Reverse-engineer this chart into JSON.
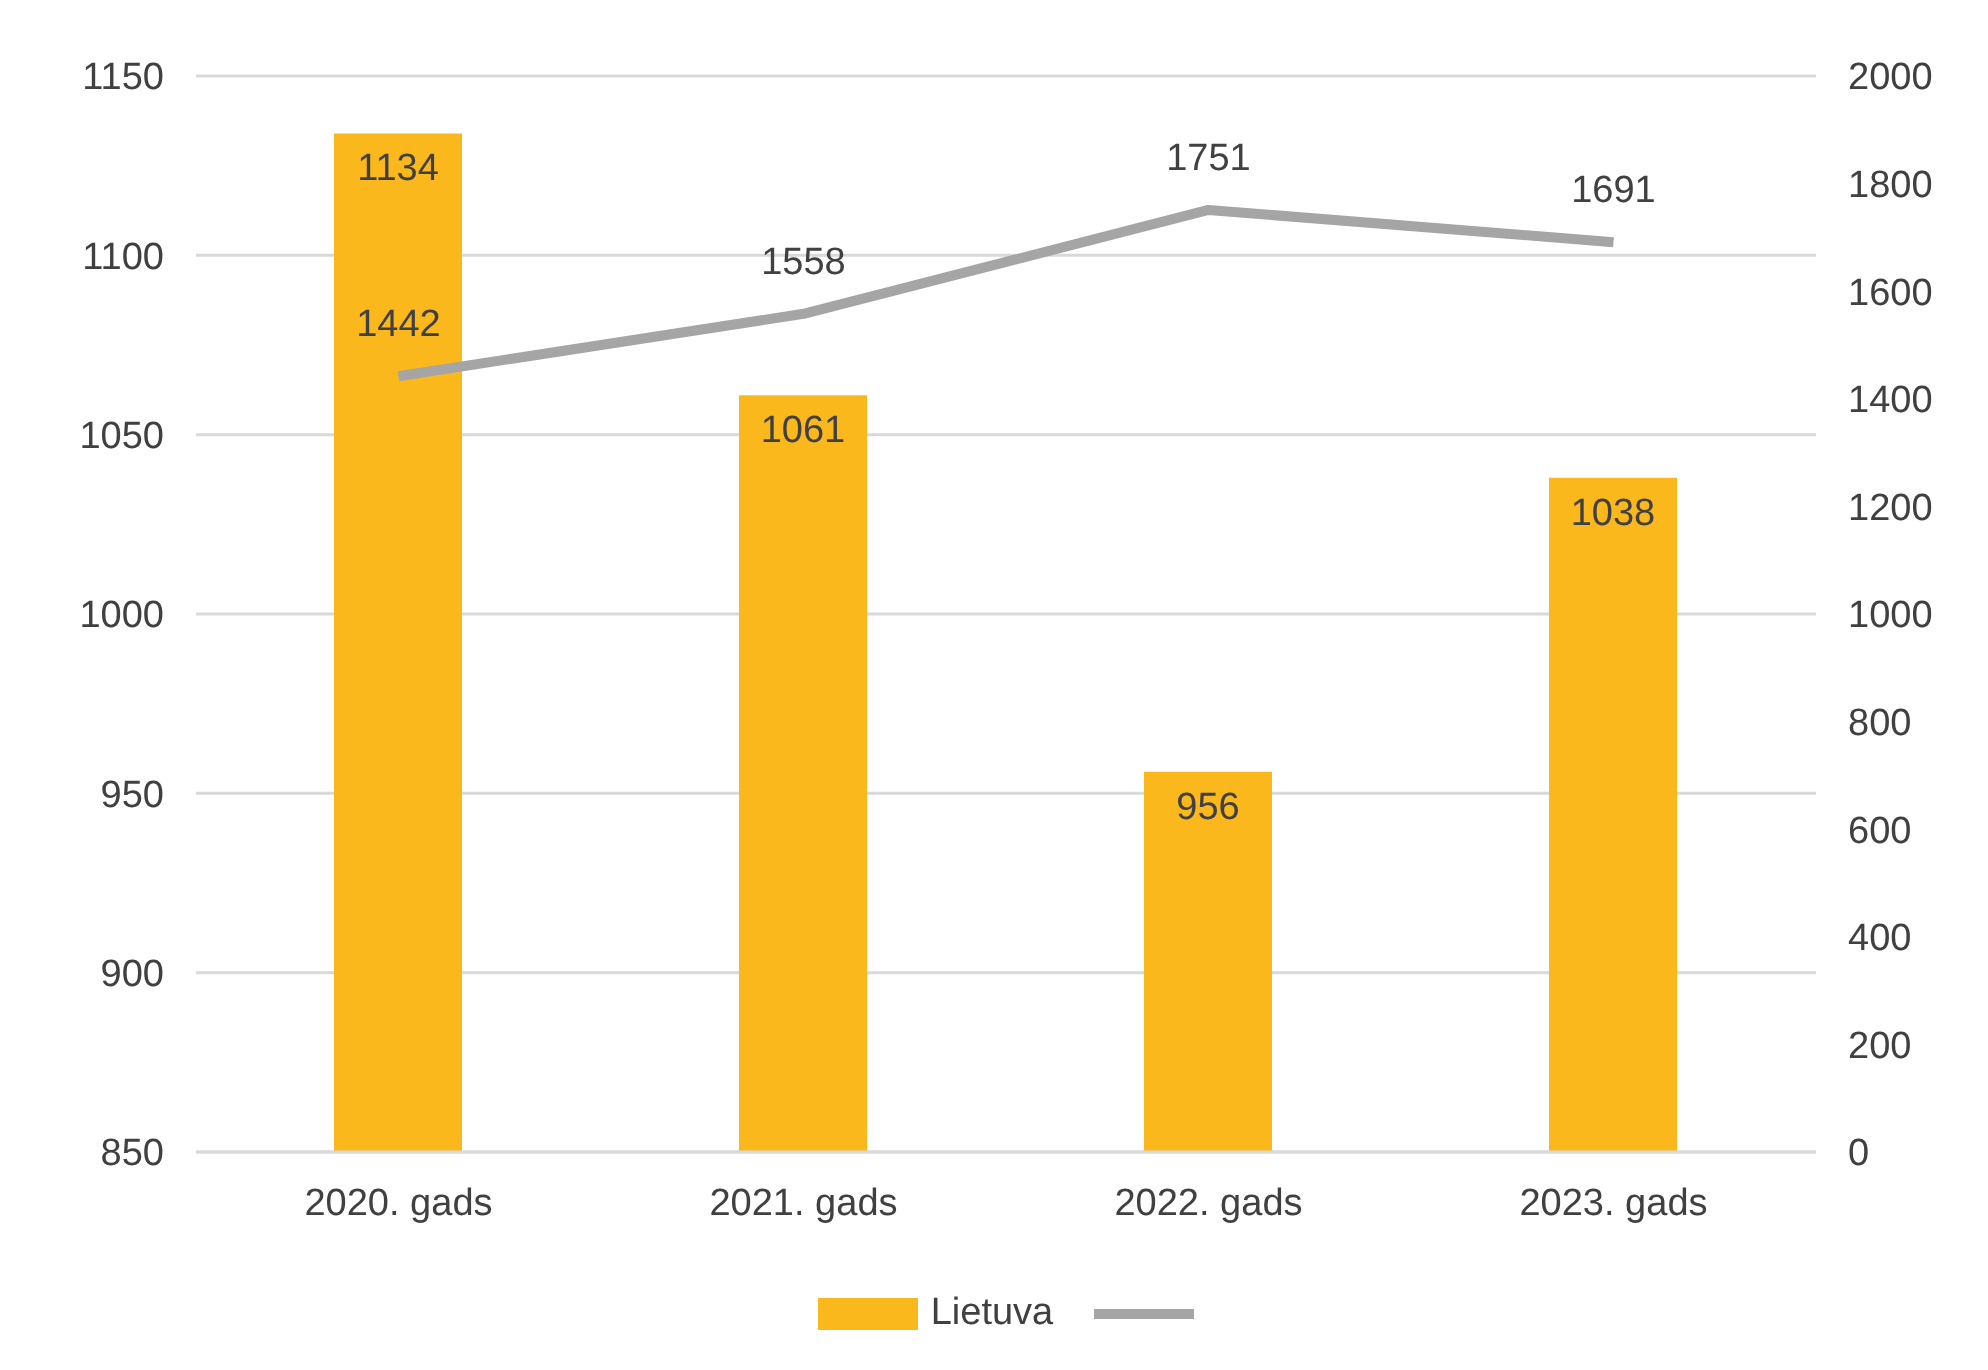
{
  "chart_data": {
    "type": "bar",
    "categories": [
      "2020. gads",
      "2021. gads",
      "2022. gads",
      "2023. gads"
    ],
    "series": [
      {
        "name": "Lietuva",
        "color": "#fbb81c",
        "values": [
          1134,
          1061,
          956,
          1038
        ]
      },
      {
        "type": "line",
        "axis": "y2",
        "color": "#a5a5a5",
        "values": [
          1442,
          1558,
          1751,
          1691
        ]
      }
    ],
    "ylim": [
      850,
      1150
    ],
    "yticks": [
      850,
      900,
      950,
      1000,
      1050,
      1100,
      1150
    ],
    "y2lim": [
      0,
      2000
    ],
    "y2ticks": [
      0,
      200,
      400,
      600,
      800,
      1000,
      1200,
      1400,
      1600,
      1800,
      2000
    ],
    "grid": "y",
    "legend": "bottom",
    "data_labels": true,
    "marker": "none"
  }
}
